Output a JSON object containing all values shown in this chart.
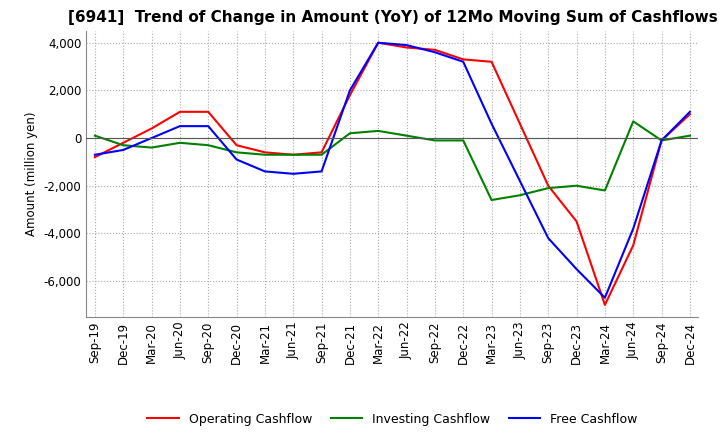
{
  "title": "[6941]  Trend of Change in Amount (YoY) of 12Mo Moving Sum of Cashflows",
  "ylabel": "Amount (million yen)",
  "ylim": [
    -7500,
    4500
  ],
  "yticks": [
    -6000,
    -4000,
    -2000,
    0,
    2000,
    4000
  ],
  "x_labels": [
    "Sep-19",
    "Dec-19",
    "Mar-20",
    "Jun-20",
    "Sep-20",
    "Dec-20",
    "Mar-21",
    "Jun-21",
    "Sep-21",
    "Dec-21",
    "Mar-22",
    "Jun-22",
    "Sep-22",
    "Dec-22",
    "Mar-23",
    "Jun-23",
    "Sep-23",
    "Dec-23",
    "Mar-24",
    "Jun-24",
    "Sep-24",
    "Dec-24"
  ],
  "operating": [
    -800,
    -200,
    400,
    1100,
    1100,
    -300,
    -600,
    -700,
    -600,
    1800,
    4000,
    3800,
    3700,
    3300,
    3200,
    600,
    -2000,
    -3500,
    -7000,
    -4500,
    -100,
    1000
  ],
  "investing": [
    100,
    -300,
    -400,
    -200,
    -300,
    -600,
    -700,
    -700,
    -700,
    200,
    300,
    100,
    -100,
    -100,
    -2600,
    -2400,
    -2100,
    -2000,
    -2200,
    700,
    -100,
    100
  ],
  "free": [
    -700,
    -500,
    0,
    500,
    500,
    -900,
    -1400,
    -1500,
    -1400,
    2000,
    4000,
    3900,
    3600,
    3200,
    600,
    -1800,
    -4200,
    -5500,
    -6700,
    -3800,
    -100,
    1100
  ],
  "line_colors": {
    "operating": "#ff0000",
    "investing": "#008000",
    "free": "#0000ff"
  },
  "legend_labels": [
    "Operating Cashflow",
    "Investing Cashflow",
    "Free Cashflow"
  ],
  "background_color": "#ffffff",
  "grid_color": "#aaaaaa",
  "title_fontsize": 11,
  "axis_fontsize": 8.5,
  "legend_fontsize": 9
}
